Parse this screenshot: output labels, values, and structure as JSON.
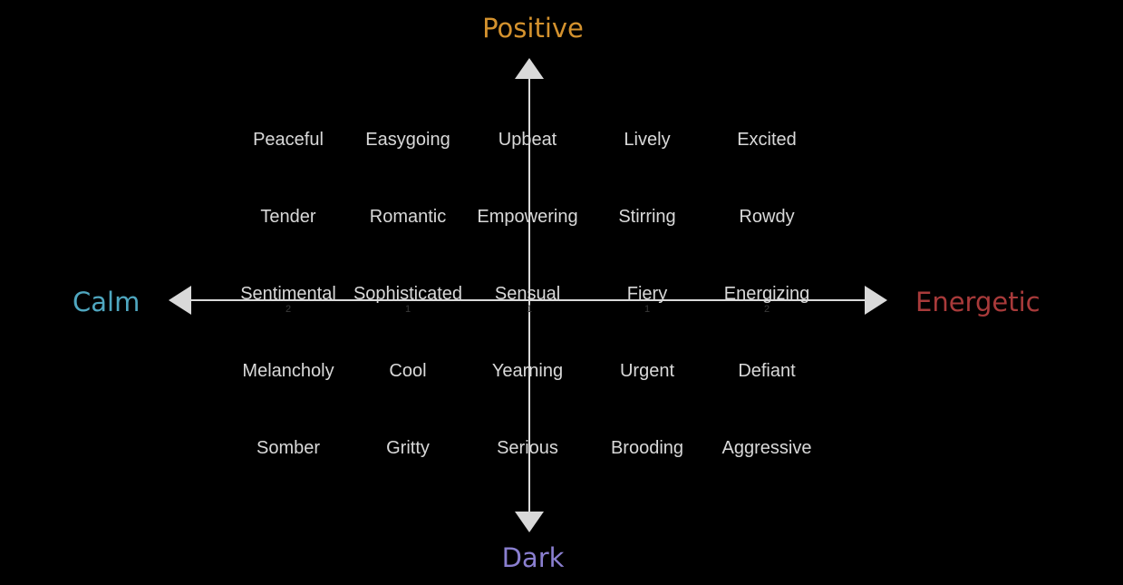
{
  "axes": {
    "top": "Positive",
    "bottom": "Dark",
    "left": "Calm",
    "right": "Energetic"
  },
  "colors": {
    "positive": "#d4922e",
    "dark": "#8a7fd0",
    "calm": "#4fa7c0",
    "energetic": "#a83a3a",
    "axis_line": "#d9d9d9",
    "text": "#d9d9d9",
    "background": "#000000"
  },
  "grid": [
    [
      "Peaceful",
      "Easygoing",
      "Upbeat",
      "Lively",
      "Excited"
    ],
    [
      "Tender",
      "Romantic",
      "Empowering",
      "Stirring",
      "Rowdy"
    ],
    [
      "Sentimental",
      "Sophisticated",
      "Sensual",
      "Fiery",
      "Energizing"
    ],
    [
      "Melancholy",
      "Cool",
      "Yearning",
      "Urgent",
      "Defiant"
    ],
    [
      "Somber",
      "Gritty",
      "Serious",
      "Brooding",
      "Aggressive"
    ]
  ],
  "ticks": [
    "2",
    "1",
    "1",
    "1",
    "2"
  ]
}
